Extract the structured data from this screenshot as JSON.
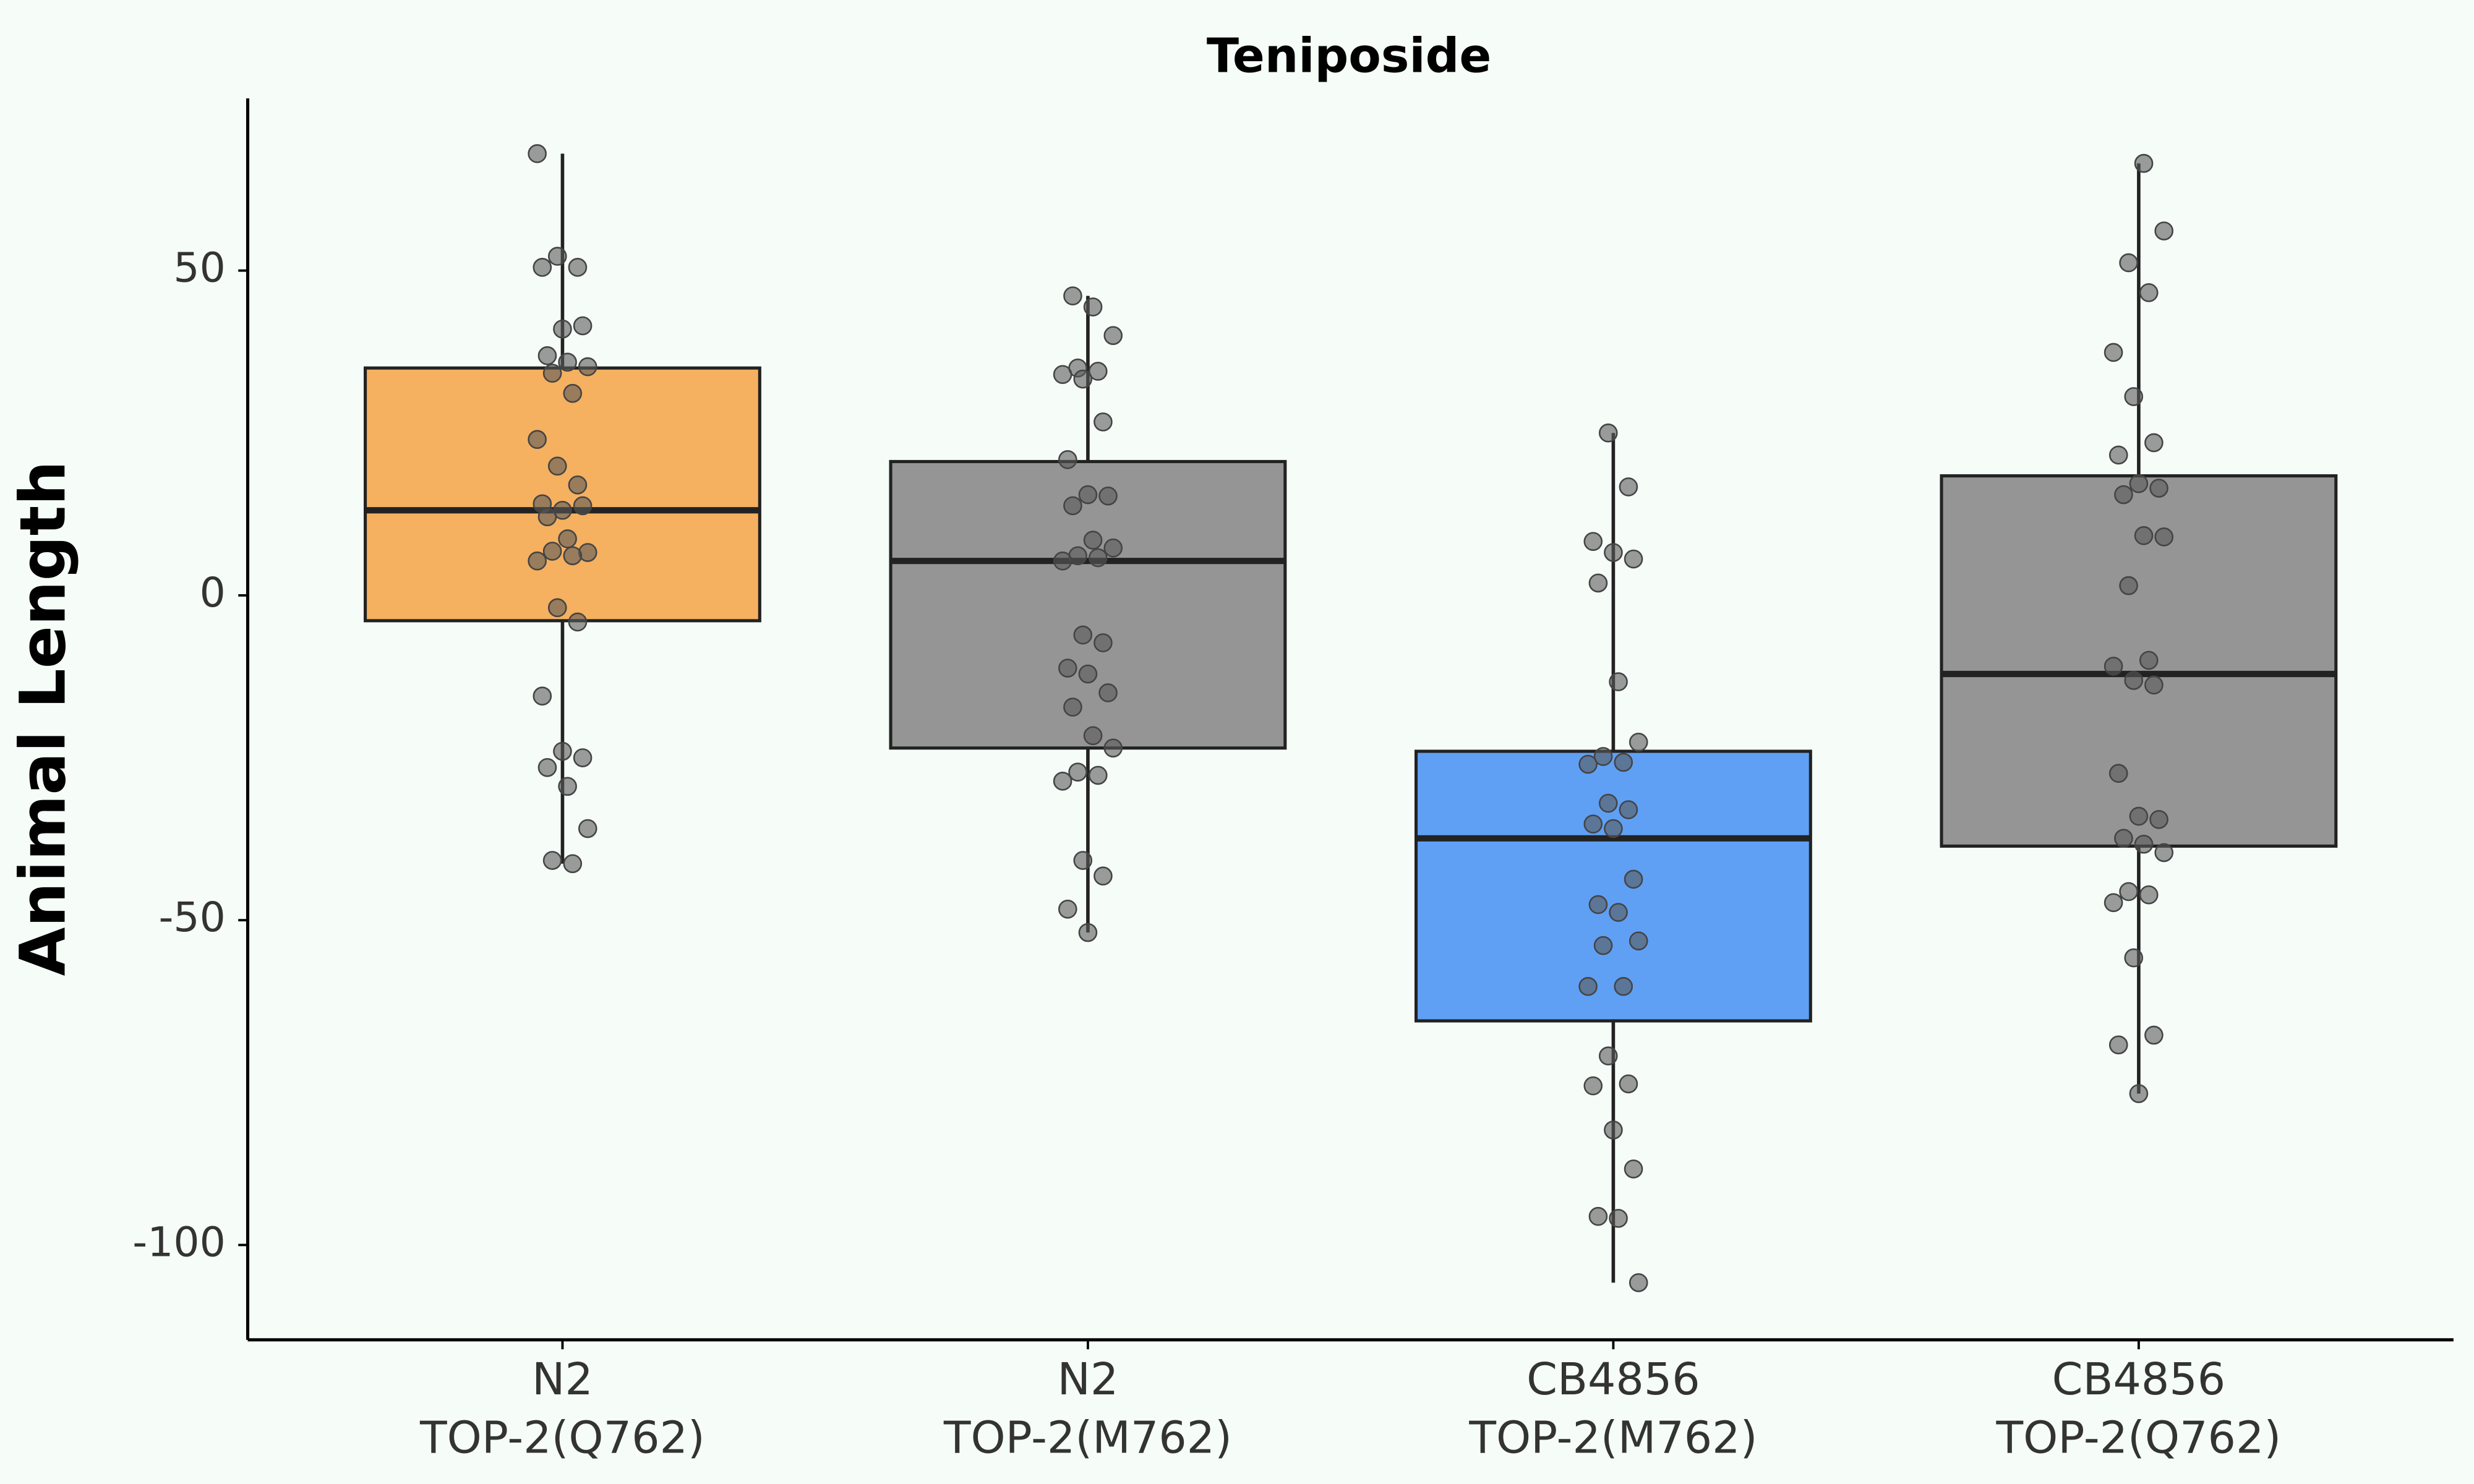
{
  "chart_data": {
    "type": "box",
    "title": "Teniposide",
    "y_label": "Animal Length",
    "categories": [
      [
        "N2",
        "TOP-2(Q762)"
      ],
      [
        "N2",
        "TOP-2(M762)"
      ],
      [
        "CB4856",
        "TOP-2(M762)"
      ],
      [
        "CB4856",
        "TOP-2(Q762)"
      ]
    ],
    "ylim": [
      -114.6,
      76.5
    ],
    "yticks": [
      -100,
      -50,
      0,
      50
    ],
    "boxes": [
      {
        "color": "#f5b060",
        "whisker_low": -41.3,
        "q1": -3.9,
        "median": 13.1,
        "q3": 35.0,
        "whisker_high": 68.0,
        "points": [
          68.0,
          52.2,
          50.5,
          50.5,
          41.0,
          41.5,
          36.9,
          35.9,
          35.2,
          34.2,
          31.1,
          24.0,
          19.9,
          17.0,
          14.1,
          13.1,
          13.8,
          12.1,
          8.7,
          6.6,
          6.8,
          6.1,
          5.3,
          -1.9,
          -4.1,
          -15.5,
          -24.0,
          -25.0,
          -26.5,
          -29.4,
          -35.9,
          -40.8,
          -41.3
        ]
      },
      {
        "color": "#959595",
        "whisker_low": -51.9,
        "q1": -23.5,
        "median": 5.3,
        "q3": 20.6,
        "whisker_high": 46.1,
        "points": [
          46.1,
          44.4,
          40.0,
          35.0,
          34.5,
          34.0,
          33.3,
          26.7,
          20.9,
          15.5,
          15.3,
          13.8,
          8.5,
          7.3,
          6.1,
          5.8,
          5.3,
          -6.1,
          -7.3,
          -11.2,
          -12.1,
          -15.0,
          -17.2,
          -21.6,
          -23.5,
          -27.2,
          -27.7,
          -28.6,
          -40.8,
          -43.2,
          -48.3,
          -51.9
        ]
      },
      {
        "color": "#5fa0f5",
        "whisker_low": -105.8,
        "q1": -65.5,
        "median": -37.4,
        "q3": -24.0,
        "whisker_high": 25.0,
        "points": [
          25.0,
          16.7,
          8.3,
          6.6,
          5.6,
          1.9,
          -13.3,
          -22.6,
          -24.8,
          -25.7,
          -26.0,
          -32.0,
          -33.0,
          -35.2,
          -35.9,
          -43.7,
          -47.6,
          -48.8,
          -53.2,
          -53.9,
          -60.2,
          -60.2,
          -70.9,
          -75.2,
          -75.5,
          -82.3,
          -88.3,
          -95.6,
          -95.9,
          -105.8
        ]
      },
      {
        "color": "#959595",
        "whisker_low": -76.7,
        "q1": -38.6,
        "median": -12.1,
        "q3": 18.4,
        "whisker_high": 66.5,
        "points": [
          66.5,
          56.1,
          51.2,
          46.6,
          37.4,
          30.6,
          23.5,
          21.6,
          17.2,
          16.5,
          15.5,
          9.2,
          9.0,
          1.5,
          -10.0,
          -10.9,
          -13.1,
          -13.8,
          -27.4,
          -34.0,
          -34.5,
          -37.4,
          -38.3,
          -39.6,
          -45.6,
          -46.1,
          -47.3,
          -55.8,
          -67.7,
          -69.2,
          -76.7
        ]
      }
    ]
  }
}
